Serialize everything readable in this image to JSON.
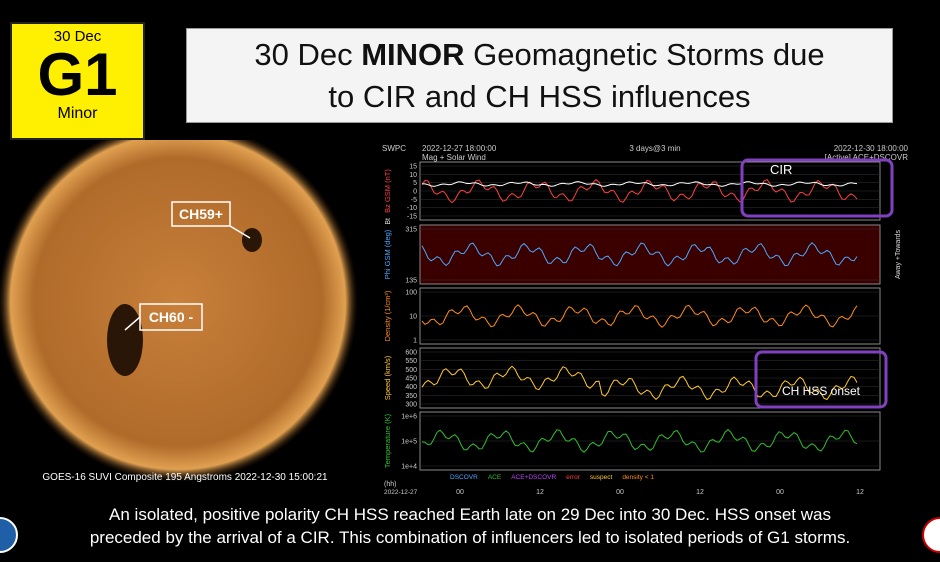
{
  "badge": {
    "date": "30 Dec",
    "level": "G1",
    "label": "Minor"
  },
  "title": {
    "prefix": "30 Dec ",
    "emphasis": "MINOR",
    "line1_rest": " Geomagnetic Storms due",
    "line2": "to CIR and CH HSS influences"
  },
  "sun": {
    "labels": [
      "CH59+",
      "CH60 -"
    ],
    "caption": "GOES-16 SUVI Composite 195 Angstroms 2022-12-30 15:00:21"
  },
  "plot": {
    "source": "SWPC",
    "start": "2022-12-27 18:00:00",
    "span": "3 days@3 min",
    "end": "2022-12-30 18:00:00",
    "subtitle": "Mag + Solar Wind",
    "sources": "[Active] ACE+DSCOVR",
    "panels": [
      {
        "label": "Bz GSM (nT)",
        "label2": "Bt",
        "ticks": [
          "15",
          "10",
          "5",
          "0",
          "-5",
          "-10",
          "-15"
        ]
      },
      {
        "label": "Phi GSM (deg)",
        "label2": "Away +Towards",
        "ticks": [
          "315",
          "135"
        ]
      },
      {
        "label": "Density (1/cm³)",
        "ticks": [
          "100",
          "10",
          "1"
        ]
      },
      {
        "label": "Speed (km/s)",
        "ticks": [
          "600",
          "550",
          "500",
          "450",
          "400",
          "350",
          "300"
        ]
      },
      {
        "label": "Temperature (K)",
        "ticks": [
          "1e+6",
          "1e+5",
          "1e+4"
        ]
      }
    ],
    "annotations": [
      "CIR",
      "CH HSS onset"
    ],
    "legend": [
      "DSCOVR",
      "ACE",
      "ACE+DSCOVR",
      "error",
      "suspect",
      "density < 1"
    ],
    "x_unit": "(hh)",
    "x_date": "2022-12-27",
    "x_labels": [
      "00",
      "12",
      "00",
      "12",
      "00",
      "12"
    ]
  },
  "footer": {
    "line1": "An isolated, positive polarity CH HSS reached Earth late on 29 Dec into 30 Dec. HSS onset was",
    "line2": "preceded by the arrival of a CIR. This combination of influencers led to isolated periods of G1 storms."
  }
}
